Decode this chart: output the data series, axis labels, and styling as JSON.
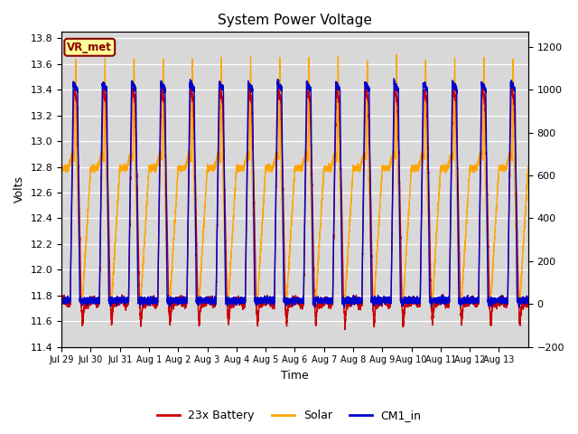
{
  "title": "System Power Voltage",
  "xlabel": "Time",
  "ylabel": "Volts",
  "ylim_left": [
    11.4,
    13.85
  ],
  "ylim_right": [
    -200,
    1270
  ],
  "yticks_left": [
    11.4,
    11.6,
    11.8,
    12.0,
    12.2,
    12.4,
    12.6,
    12.8,
    13.0,
    13.2,
    13.4,
    13.6,
    13.8
  ],
  "yticks_right": [
    -200,
    0,
    200,
    400,
    600,
    800,
    1000,
    1200
  ],
  "xtick_labels": [
    "Jul 29",
    "Jul 30",
    "Jul 31",
    "Aug 1",
    "Aug 2",
    "Aug 3",
    "Aug 4",
    "Aug 5",
    "Aug 6",
    "Aug 7",
    "Aug 8",
    "Aug 9",
    "Aug 10",
    "Aug 11",
    "Aug 12",
    "Aug 13"
  ],
  "annotation_text": "VR_met",
  "annotation_fg": "#8B0000",
  "annotation_bg": "#FFFF99",
  "bg_color": "#D8D8D8",
  "grid_color": "#FFFFFF",
  "series_colors": [
    "#CC0000",
    "#FFA500",
    "#0000CC"
  ],
  "series_labels": [
    "23x Battery",
    "Solar",
    "CM1_in"
  ],
  "line_width": 1.0,
  "n_days": 16,
  "battery_night": 11.75,
  "battery_low": 11.57,
  "battery_peak": 13.4,
  "solar_plateau": 12.8,
  "solar_peak": 13.65,
  "solar_night": 11.76,
  "cm1_peak": 13.45,
  "cm1_night": 11.76
}
